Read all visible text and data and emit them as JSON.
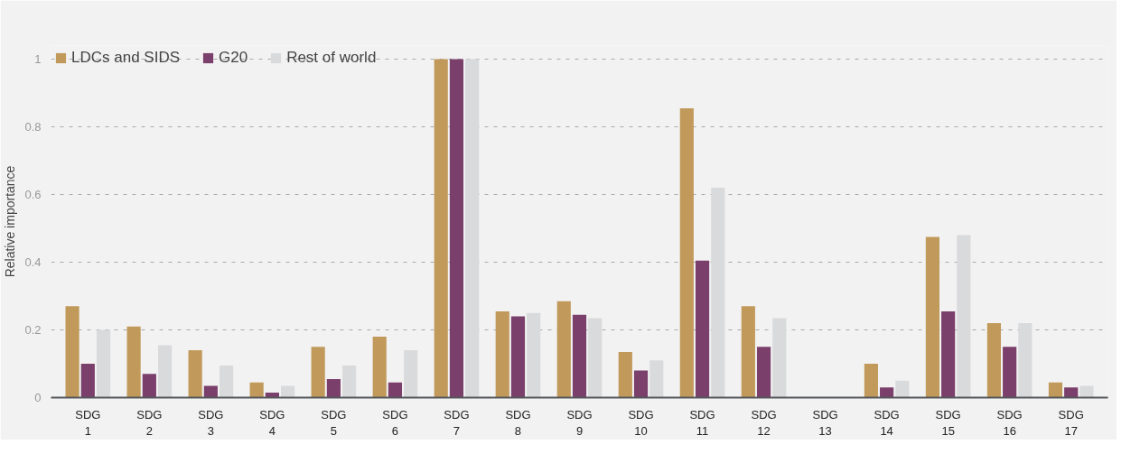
{
  "chart_data": {
    "type": "bar",
    "ylabel": "Relative importance",
    "categories": [
      "SDG 1",
      "SDG 2",
      "SDG 3",
      "SDG 4",
      "SDG 5",
      "SDG 6",
      "SDG 7",
      "SDG 8",
      "SDG 9",
      "SDG 10",
      "SDG 11",
      "SDG 12",
      "SDG 13",
      "SDG 14",
      "SDG 15",
      "SDG 16",
      "SDG 17"
    ],
    "series": [
      {
        "name": "LDCs and SIDS",
        "color": "#c19a5b",
        "values": [
          0.27,
          0.21,
          0.14,
          0.045,
          0.15,
          0.18,
          1,
          0.255,
          0.285,
          0.135,
          0.855,
          0.27,
          0,
          0.1,
          0.475,
          0.22,
          0.045
        ]
      },
      {
        "name": "G20",
        "color": "#7b3f6b",
        "values": [
          0.1,
          0.07,
          0.035,
          0.015,
          0.055,
          0.045,
          1,
          0.24,
          0.245,
          0.08,
          0.405,
          0.15,
          0,
          0.03,
          0.255,
          0.15,
          0.03
        ]
      },
      {
        "name": "Rest of world",
        "color": "#d9dadc",
        "values": [
          0.2,
          0.155,
          0.095,
          0.035,
          0.095,
          0.14,
          1,
          0.25,
          0.235,
          0.11,
          0.62,
          0.235,
          0,
          0.05,
          0.48,
          0.22,
          0.035
        ]
      }
    ],
    "ylim": [
      0,
      1.04
    ],
    "yticks": [
      0,
      0.2,
      0.4,
      0.6,
      0.8,
      1
    ],
    "grid": "y",
    "legend": "top left"
  }
}
